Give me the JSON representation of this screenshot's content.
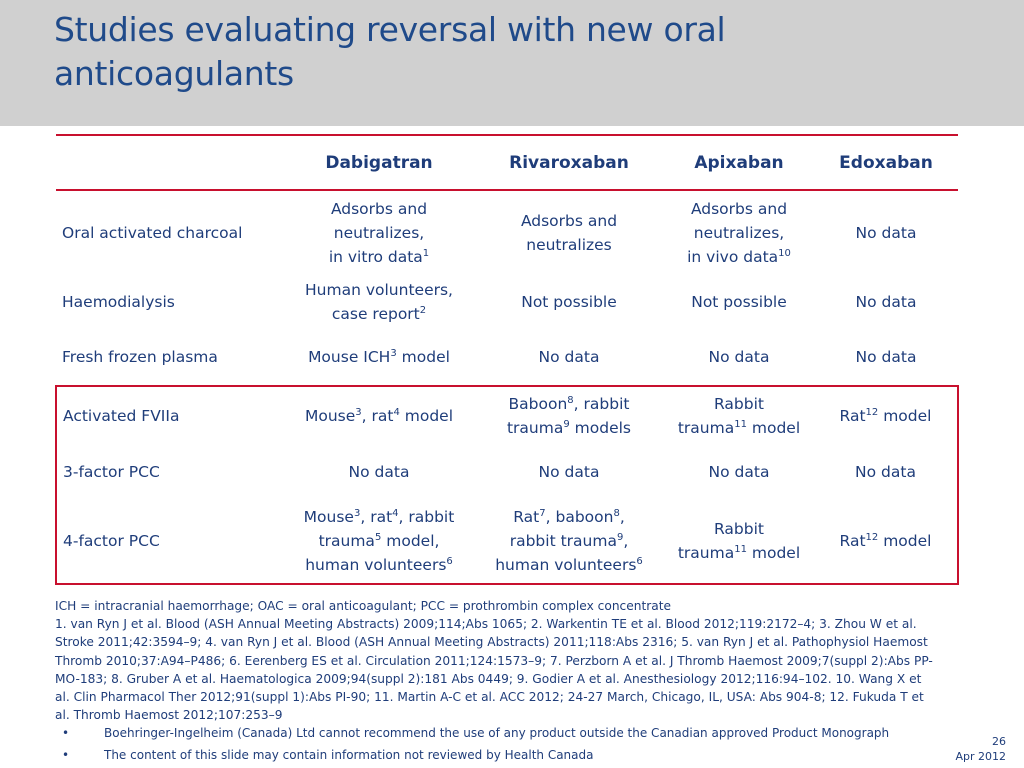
{
  "title": "Studies evaluating reversal with new oral anticoagulants",
  "table": {
    "headers": [
      "",
      "Dabigatran",
      "Rivaroxaban",
      "Apixaban",
      "Edoxaban"
    ],
    "rows": [
      {
        "label": "Oral activated charcoal",
        "cells": [
          "Adsorbs and neutralizes,<br>in vitro data<sup>1</sup>",
          "Adsorbs and<br>neutralizes",
          "Adsorbs and neutralizes,<br>in vivo data<sup>10</sup>",
          "No data"
        ]
      },
      {
        "label": "Haemodialysis",
        "cells": [
          "Human volunteers,<br>case report<sup>2</sup>",
          "Not possible",
          "Not possible",
          "No data"
        ]
      },
      {
        "label": "Fresh frozen plasma",
        "cells": [
          "Mouse ICH<sup>3</sup> model",
          "No data",
          "No data",
          "No data"
        ]
      },
      {
        "label": "Activated FVIIa",
        "cells": [
          "Mouse<sup>3</sup>, rat<sup>4</sup> model",
          "Baboon<sup>8</sup>, rabbit<br>trauma<sup>9</sup> models",
          "Rabbit<br>trauma<sup>11</sup> model",
          "Rat<sup>12</sup> model"
        ]
      },
      {
        "label": "3-factor PCC",
        "cells": [
          "No data",
          "No data",
          "No data",
          "No data"
        ]
      },
      {
        "label": "4-factor PCC",
        "cells": [
          "Mouse<sup>3</sup>, rat<sup>4</sup>, rabbit<br>trauma<sup>5</sup> model,<br>human volunteers<sup>6</sup>",
          "Rat<sup>7</sup>, baboon<sup>8</sup>,<br>rabbit trauma<sup>9</sup>,<br>human volunteers<sup>6</sup>",
          "Rabbit<br>trauma<sup>11</sup> model",
          "Rat<sup>12</sup> model"
        ]
      }
    ]
  },
  "footnotes": {
    "abbreviations": "ICH = intracranial haemorrhage; OAC = oral anticoagulant; PCC = prothrombin complex concentrate",
    "references": "1. van Ryn J et al. Blood (ASH Annual Meeting Abstracts) 2009;114;Abs 1065; 2. Warkentin TE et al. Blood 2012;119:2172–4; 3. Zhou W et al. Stroke 2011;42:3594–9; 4. van Ryn J et al. Blood (ASH Annual Meeting Abstracts) 2011;118:Abs 2316; 5. van Ryn J et al. Pathophysiol Haemost Thromb 2010;37:A94–P486; 6. Eerenberg ES et al. Circulation 2011;124:1573–9; 7. Perzborn A et al. J Thromb Haemost 2009;7(suppl 2):Abs PP-MO-183; 8. Gruber A et al. Haematologica 2009;94(suppl 2):181 Abs 0449; 9. Godier A et al. Anesthesiology 2012;116:94–102. 10. Wang X et al. Clin Pharmacol Ther 2012;91(suppl 1):Abs PI-90; 11. Martin A-C et al. ACC 2012; 24-27 March, Chicago, IL, USA: Abs 904-8; 12. Fukuda T et al. Thromb Haemost 2012;107:253–9"
  },
  "bullets": [
    "Boehringer-Ingelheim (Canada) Ltd cannot recommend the use of any product  outside the Canadian approved Product Monograph",
    "The content of this slide may contain information not reviewed by Health Canada"
  ],
  "bullet_symbol": "•",
  "page_number": "26",
  "date": "Apr 2012"
}
